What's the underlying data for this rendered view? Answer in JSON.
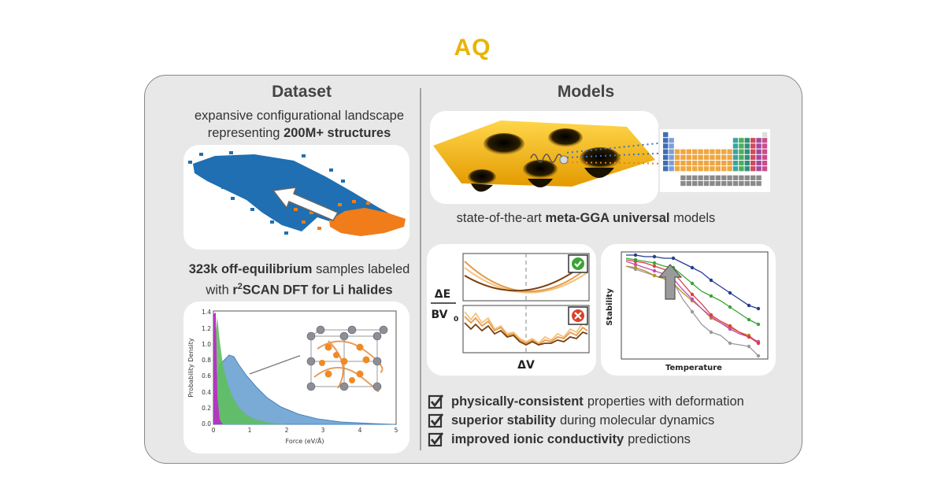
{
  "logo": {
    "text": "AQ",
    "color": "#e8b400"
  },
  "dataset": {
    "heading": "Dataset",
    "caption1_line1": "expansive configurational landscape",
    "caption1_pre": "representing",
    "caption1_bold": "200M+ structures",
    "caption2_bold1": "323k off-equilibrium",
    "caption2_rest1": "samples labeled",
    "caption2_with": "with",
    "caption2_r": "r",
    "caption2_sup": "2",
    "caption2_bold2": "SCAN DFT for Li halides"
  },
  "force_chart": {
    "xlabel": "Force (eV/Å)",
    "ylabel": "Probability Density",
    "x_ticks": [
      "0",
      "1",
      "2",
      "3",
      "4",
      "5"
    ],
    "y_ticks": [
      "0.0",
      "0.2",
      "0.4",
      "0.6",
      "0.8",
      "1.0",
      "1.2",
      "1.4"
    ]
  },
  "models": {
    "heading": "Models",
    "caption_pre": "state-of-the-art",
    "caption_bold": "meta-GGA universal",
    "caption_post": "models"
  },
  "energy_panel": {
    "numerator": "ΔE",
    "denominator": "BV",
    "denominator_sub": "0",
    "xlabel": "ΔV",
    "good_icon": "check-circle-icon",
    "bad_icon": "x-circle-icon"
  },
  "stability_chart": {
    "xlabel": "Temperature",
    "ylabel": "Stability"
  },
  "bullets": [
    {
      "bold": "physically-consistent",
      "rest": "properties with deformation"
    },
    {
      "bold": "superior stability",
      "rest": "during molecular dynamics"
    },
    {
      "bold": "improved ionic conductivity",
      "rest": "predictions"
    }
  ],
  "colors": {
    "scatter_blue": "#1f6fb2",
    "scatter_orange": "#f07c1a",
    "landscape_gold": "#f5b800",
    "good": "#3aa535",
    "bad": "#d9412b"
  }
}
